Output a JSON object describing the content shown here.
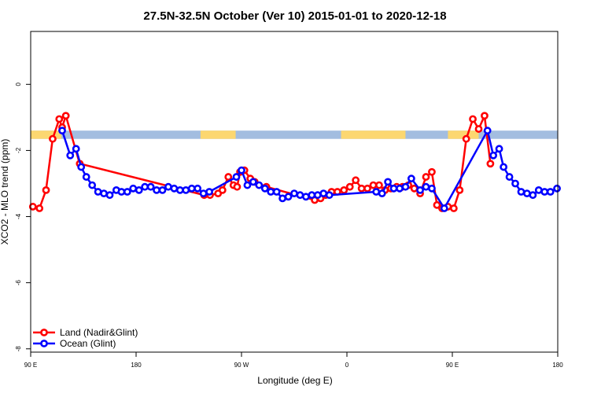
{
  "chart_data": {
    "type": "line",
    "title": "27.5N-32.5N October (Ver 10)   2015-01-01 to 2020-12-18",
    "xlabel": "Longitude (deg E)",
    "ylabel": "XCO2 - MLO trend (ppm)",
    "xlim": [
      90,
      450
    ],
    "ylim": [
      -8.1,
      1.6
    ],
    "x_ticks": [
      {
        "value": 90,
        "label": "90 E"
      },
      {
        "value": 162,
        "label": "180"
      },
      {
        "value": 234,
        "label": "90 W"
      },
      {
        "value": 306,
        "label": "0"
      },
      {
        "value": 378,
        "label": "90 E"
      },
      {
        "value": 450,
        "label": "180"
      }
    ],
    "y_ticks": [
      {
        "value": 0,
        "label": "0"
      },
      {
        "value": -2,
        "label": "-2"
      },
      {
        "value": -4,
        "label": "-4"
      },
      {
        "value": -6,
        "label": "-6"
      },
      {
        "value": -8,
        "label": "-8"
      }
    ],
    "land_sea_band": {
      "y_range": [
        -1.65,
        -1.4
      ],
      "ocean_color": "#a3bde0",
      "land_color": "#fcd770",
      "land_x_ranges": [
        [
          90,
          111
        ],
        [
          206,
          230
        ],
        [
          302,
          346
        ],
        [
          375,
          396
        ]
      ]
    },
    "series": [
      {
        "name": "Land (Nadir&Glint)",
        "color": "#ff0000",
        "x": [
          91.5,
          96,
          100.5,
          105,
          109.5,
          111.5,
          114,
          123.5,
          208.5,
          212.5,
          218,
          221,
          225,
          228.5,
          231,
          233,
          236,
          240,
          243,
          251,
          284,
          288,
          291.5,
          295.5,
          299.5,
          304,
          308,
          312,
          316,
          320,
          324,
          328,
          332,
          336,
          340,
          344,
          348,
          352,
          356,
          360,
          364,
          367.5,
          371,
          375,
          379,
          383,
          387.5,
          392,
          396,
          400,
          404
        ],
        "y": [
          -3.7,
          -3.75,
          -3.2,
          -1.65,
          -1.05,
          -1.3,
          -0.95,
          -2.4,
          -3.35,
          -3.35,
          -3.3,
          -3.2,
          -2.8,
          -3.05,
          -3.1,
          -2.65,
          -2.6,
          -2.85,
          -2.95,
          -3.1,
          -3.5,
          -3.45,
          -3.35,
          -3.25,
          -3.25,
          -3.2,
          -3.1,
          -2.9,
          -3.15,
          -3.15,
          -3.05,
          -3.05,
          -3.2,
          -3.15,
          -3.1,
          -3.1,
          -3.05,
          -3.15,
          -3.3,
          -2.8,
          -2.65,
          -3.65,
          -3.75,
          -3.7,
          -3.75,
          -3.2,
          -1.65,
          -1.05,
          -1.35,
          -0.95,
          -2.4
        ]
      },
      {
        "name": "Ocean (Glint)",
        "color": "#0000ff",
        "x": [
          111.5,
          117,
          121,
          124.5,
          128,
          132,
          136,
          140,
          144,
          148.5,
          152,
          156,
          160,
          164,
          168,
          172,
          176,
          180,
          184,
          188,
          192,
          196,
          200,
          204,
          208,
          212,
          230.5,
          234,
          238,
          242,
          246,
          250,
          254,
          258,
          262,
          266,
          270,
          274,
          278,
          282,
          286,
          290,
          294,
          326,
          330,
          334,
          338,
          342,
          346,
          350,
          356,
          360,
          364,
          372.5,
          402,
          406,
          410,
          413,
          417,
          421,
          425,
          429,
          433,
          437,
          441,
          445,
          449.5
        ],
        "y": [
          -1.4,
          -2.15,
          -1.95,
          -2.5,
          -2.8,
          -3.05,
          -3.25,
          -3.3,
          -3.35,
          -3.2,
          -3.25,
          -3.25,
          -3.15,
          -3.2,
          -3.1,
          -3.1,
          -3.2,
          -3.2,
          -3.1,
          -3.15,
          -3.2,
          -3.2,
          -3.15,
          -3.15,
          -3.3,
          -3.25,
          -2.8,
          -2.6,
          -3.05,
          -2.95,
          -3.05,
          -3.15,
          -3.25,
          -3.25,
          -3.45,
          -3.4,
          -3.3,
          -3.35,
          -3.4,
          -3.35,
          -3.35,
          -3.3,
          -3.35,
          -3.25,
          -3.3,
          -2.95,
          -3.15,
          -3.15,
          -3.1,
          -2.85,
          -3.2,
          -3.1,
          -3.15,
          -3.75,
          -1.4,
          -2.15,
          -1.95,
          -2.5,
          -2.8,
          -3.0,
          -3.25,
          -3.3,
          -3.35,
          -3.2,
          -3.25,
          -3.25,
          -3.15
        ]
      }
    ],
    "legend": {
      "position": "bottom-left",
      "entries": [
        {
          "label": "Land (Nadir&Glint)",
          "color": "#ff0000"
        },
        {
          "label": "Ocean (Glint)",
          "color": "#0000ff"
        }
      ]
    },
    "grid": false
  }
}
